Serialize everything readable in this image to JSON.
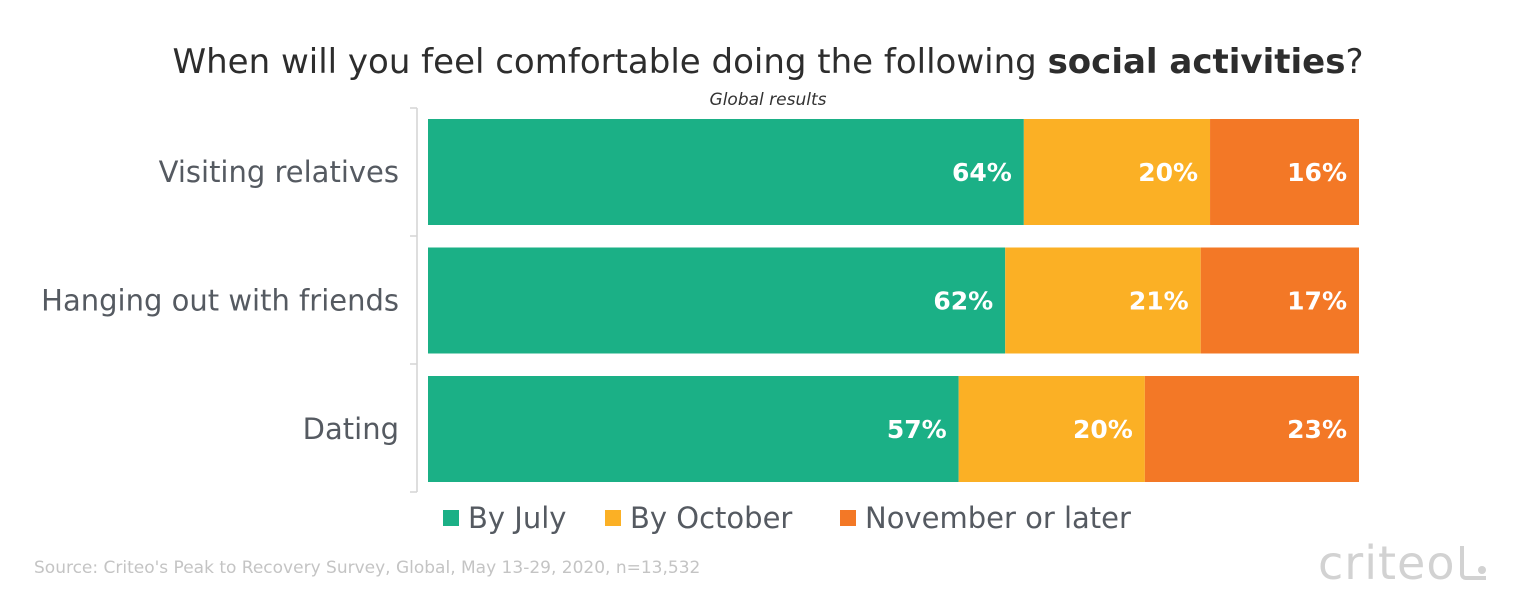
{
  "title": {
    "prefix": "When will you feel comfortable doing the following ",
    "bold": "social activities",
    "suffix": "?"
  },
  "subtitle": "Global results",
  "source": "Source: Criteo's Peak to Recovery Survey, Global, May 13-29, 2020, n=13,532",
  "brand": {
    "text": "criteo"
  },
  "chart_data": {
    "type": "bar",
    "orientation": "horizontal",
    "stacked": true,
    "percent": true,
    "categories": [
      "Visiting relatives",
      "Hanging out with friends",
      "Dating"
    ],
    "series": [
      {
        "name": "By July",
        "values": [
          64,
          62,
          57
        ],
        "color": "#1bb086"
      },
      {
        "name": "By October",
        "values": [
          20,
          21,
          20
        ],
        "color": "#fbb025"
      },
      {
        "name": "November or later",
        "values": [
          16,
          17,
          23
        ],
        "color": "#f37826"
      }
    ],
    "data_labels": [
      [
        "64%",
        "62%",
        "57%"
      ],
      [
        "20%",
        "21%",
        "20%"
      ],
      [
        "16%",
        "17%",
        "23%"
      ]
    ],
    "xlim": [
      0,
      100
    ],
    "grid": false,
    "legend": "bottom"
  }
}
